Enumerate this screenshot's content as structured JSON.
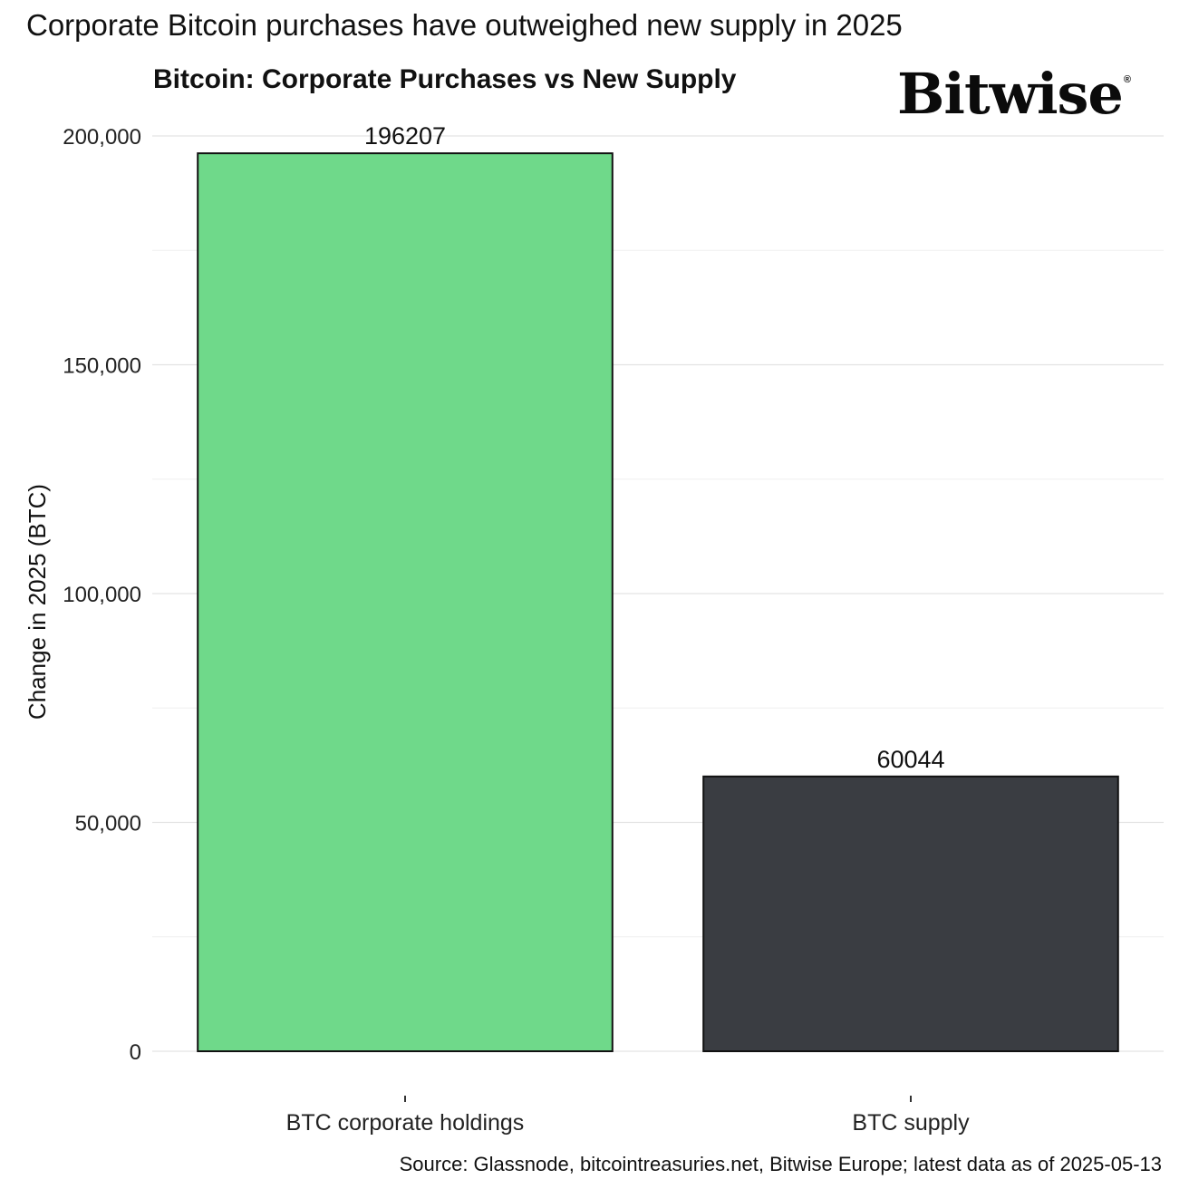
{
  "headline": "Corporate Bitcoin purchases have outweighed new supply in 2025",
  "logo": {
    "text": "Bitwise",
    "mark": "®"
  },
  "source": "Source: Glassnode, bitcointreasuries.net, Bitwise Europe; latest data as of 2025-05-13",
  "chart_data": {
    "type": "bar",
    "title": "Bitcoin: Corporate Purchases vs New Supply",
    "ylabel": "Change in 2025 (BTC)",
    "xlabel": "",
    "categories": [
      "BTC corporate holdings",
      "BTC supply"
    ],
    "values": [
      196207,
      60044
    ],
    "value_labels": [
      "196207",
      "60044"
    ],
    "colors": [
      "#6fd98a",
      "#3a3d42"
    ],
    "ylim": [
      0,
      200000
    ],
    "yticks": [
      0,
      50000,
      100000,
      150000,
      200000
    ],
    "ytick_labels": [
      "0",
      "50,000",
      "100,000",
      "150,000",
      "200,000"
    ],
    "grid": true,
    "legend": "none"
  }
}
